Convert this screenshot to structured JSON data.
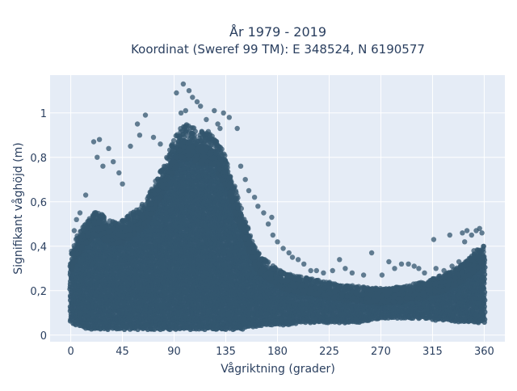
{
  "chart_data": {
    "type": "scatter",
    "title": "År 1979 - 2019",
    "subtitle": "Koordinat (Sweref 99 TM): E 348524, N 6190577",
    "xlabel": "Vågriktning (grader)",
    "ylabel": "Signifikant våghöjd (m)",
    "x_range": [
      -18,
      378
    ],
    "y_range": [
      -0.03,
      1.17
    ],
    "x_ticks": [
      0,
      45,
      90,
      135,
      180,
      225,
      270,
      315,
      360
    ],
    "x_tick_labels": [
      "0",
      "45",
      "90",
      "135",
      "180",
      "225",
      "270",
      "315",
      "360"
    ],
    "y_ticks": [
      0,
      0.2,
      0.4,
      0.6,
      0.8,
      1
    ],
    "y_tick_labels": [
      "0",
      "0,2",
      "0,4",
      "0,6",
      "0,8",
      "1"
    ],
    "grid": true,
    "legend": "none",
    "colors": {
      "plot_background": "#e5ecf6",
      "grid": "#ffffff",
      "marker": "#33566e",
      "text": "#2a3f5f"
    },
    "x_domain": [
      0,
      360
    ],
    "envelope": {
      "x": [
        0,
        5,
        10,
        15,
        20,
        25,
        30,
        35,
        40,
        45,
        50,
        55,
        60,
        65,
        70,
        75,
        80,
        85,
        90,
        95,
        100,
        105,
        110,
        115,
        120,
        125,
        130,
        135,
        140,
        145,
        150,
        155,
        160,
        165,
        170,
        175,
        180,
        190,
        200,
        210,
        220,
        230,
        240,
        250,
        260,
        270,
        280,
        290,
        300,
        310,
        320,
        330,
        340,
        345,
        350,
        355,
        360
      ],
      "low": [
        0.06,
        0.05,
        0.04,
        0.03,
        0.03,
        0.03,
        0.03,
        0.03,
        0.03,
        0.03,
        0.03,
        0.03,
        0.03,
        0.03,
        0.03,
        0.03,
        0.03,
        0.03,
        0.03,
        0.03,
        0.03,
        0.03,
        0.03,
        0.03,
        0.03,
        0.03,
        0.03,
        0.03,
        0.03,
        0.03,
        0.03,
        0.04,
        0.04,
        0.04,
        0.05,
        0.05,
        0.05,
        0.05,
        0.06,
        0.06,
        0.06,
        0.06,
        0.06,
        0.06,
        0.07,
        0.08,
        0.08,
        0.08,
        0.08,
        0.08,
        0.07,
        0.07,
        0.06,
        0.06,
        0.06,
        0.06,
        0.06
      ],
      "high": [
        0.33,
        0.4,
        0.44,
        0.47,
        0.5,
        0.51,
        0.48,
        0.47,
        0.46,
        0.47,
        0.49,
        0.51,
        0.53,
        0.55,
        0.6,
        0.65,
        0.7,
        0.76,
        0.82,
        0.86,
        0.88,
        0.87,
        0.86,
        0.85,
        0.85,
        0.83,
        0.79,
        0.74,
        0.66,
        0.58,
        0.5,
        0.43,
        0.36,
        0.32,
        0.3,
        0.28,
        0.26,
        0.24,
        0.23,
        0.22,
        0.21,
        0.2,
        0.19,
        0.19,
        0.18,
        0.18,
        0.18,
        0.19,
        0.2,
        0.21,
        0.23,
        0.25,
        0.28,
        0.3,
        0.32,
        0.35,
        0.36
      ]
    },
    "outliers": [
      {
        "x": 98,
        "y": 1.13
      },
      {
        "x": 103,
        "y": 1.1
      },
      {
        "x": 106,
        "y": 1.07
      },
      {
        "x": 110,
        "y": 1.05
      },
      {
        "x": 113,
        "y": 1.03
      },
      {
        "x": 92,
        "y": 1.09
      },
      {
        "x": 100,
        "y": 1.01
      },
      {
        "x": 96,
        "y": 1.0
      },
      {
        "x": 125,
        "y": 1.01
      },
      {
        "x": 133,
        "y": 1.0
      },
      {
        "x": 138,
        "y": 0.98
      },
      {
        "x": 118,
        "y": 0.97
      },
      {
        "x": 128,
        "y": 0.95
      },
      {
        "x": 145,
        "y": 0.93
      },
      {
        "x": 130,
        "y": 0.93
      },
      {
        "x": 65,
        "y": 0.99
      },
      {
        "x": 58,
        "y": 0.95
      },
      {
        "x": 60,
        "y": 0.9
      },
      {
        "x": 72,
        "y": 0.89
      },
      {
        "x": 78,
        "y": 0.86
      },
      {
        "x": 52,
        "y": 0.85
      },
      {
        "x": 20,
        "y": 0.87
      },
      {
        "x": 25,
        "y": 0.88
      },
      {
        "x": 33,
        "y": 0.84
      },
      {
        "x": 23,
        "y": 0.8
      },
      {
        "x": 28,
        "y": 0.76
      },
      {
        "x": 37,
        "y": 0.78
      },
      {
        "x": 42,
        "y": 0.73
      },
      {
        "x": 45,
        "y": 0.68
      },
      {
        "x": 13,
        "y": 0.63
      },
      {
        "x": 8,
        "y": 0.55
      },
      {
        "x": 5,
        "y": 0.52
      },
      {
        "x": 3,
        "y": 0.47
      },
      {
        "x": 148,
        "y": 0.76
      },
      {
        "x": 152,
        "y": 0.7
      },
      {
        "x": 155,
        "y": 0.65
      },
      {
        "x": 160,
        "y": 0.62
      },
      {
        "x": 163,
        "y": 0.58
      },
      {
        "x": 168,
        "y": 0.55
      },
      {
        "x": 172,
        "y": 0.5
      },
      {
        "x": 176,
        "y": 0.45
      },
      {
        "x": 175,
        "y": 0.53
      },
      {
        "x": 180,
        "y": 0.42
      },
      {
        "x": 185,
        "y": 0.39
      },
      {
        "x": 190,
        "y": 0.37
      },
      {
        "x": 193,
        "y": 0.35
      },
      {
        "x": 198,
        "y": 0.34
      },
      {
        "x": 203,
        "y": 0.32
      },
      {
        "x": 209,
        "y": 0.29
      },
      {
        "x": 214,
        "y": 0.29
      },
      {
        "x": 220,
        "y": 0.28
      },
      {
        "x": 228,
        "y": 0.29
      },
      {
        "x": 234,
        "y": 0.34
      },
      {
        "x": 239,
        "y": 0.3
      },
      {
        "x": 245,
        "y": 0.28
      },
      {
        "x": 255,
        "y": 0.27
      },
      {
        "x": 262,
        "y": 0.37
      },
      {
        "x": 271,
        "y": 0.27
      },
      {
        "x": 277,
        "y": 0.33
      },
      {
        "x": 282,
        "y": 0.3
      },
      {
        "x": 288,
        "y": 0.32
      },
      {
        "x": 294,
        "y": 0.32
      },
      {
        "x": 299,
        "y": 0.31
      },
      {
        "x": 303,
        "y": 0.3
      },
      {
        "x": 308,
        "y": 0.28
      },
      {
        "x": 316,
        "y": 0.43
      },
      {
        "x": 318,
        "y": 0.3
      },
      {
        "x": 325,
        "y": 0.29
      },
      {
        "x": 330,
        "y": 0.45
      },
      {
        "x": 332,
        "y": 0.31
      },
      {
        "x": 338,
        "y": 0.33
      },
      {
        "x": 341,
        "y": 0.46
      },
      {
        "x": 345,
        "y": 0.47
      },
      {
        "x": 349,
        "y": 0.45
      },
      {
        "x": 353,
        "y": 0.47
      },
      {
        "x": 356,
        "y": 0.48
      },
      {
        "x": 358,
        "y": 0.46
      },
      {
        "x": 343,
        "y": 0.42
      },
      {
        "x": 351,
        "y": 0.38
      }
    ],
    "synthetic_cloud": {
      "count": 2600,
      "seed": 17
    }
  }
}
